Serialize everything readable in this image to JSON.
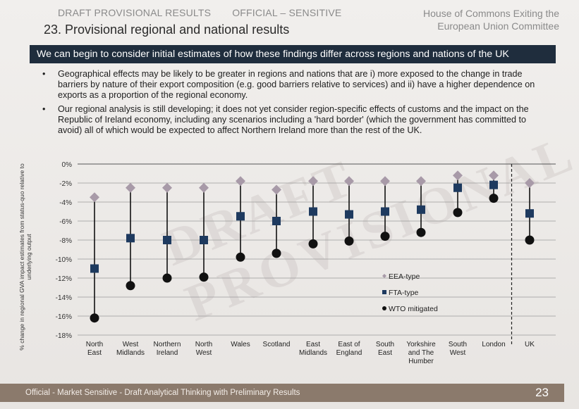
{
  "header": {
    "draft_label": "DRAFT PROVISIONAL RESULTS",
    "classification": "OFFICIAL – SENSITIVE",
    "committee": "House of Commons Exiting the European Union Committee",
    "title": "23. Provisional regional and national results"
  },
  "banner": "We can begin to consider initial estimates of how these findings differ across regions and nations of the UK",
  "bullets": [
    "Geographical effects may be likely to be greater in regions and nations that are i) more exposed to the change in trade barriers by nature of their export composition (e.g. good barriers relative to services) and ii) have a higher dependence on exports as a proportion of the regional economy.",
    "Our regional analysis is still developing; it does not yet consider region-specific effects of customs and the impact on the Republic of Ireland economy, including any scenarios including a 'hard border' (which the government has committed to avoid) all of which would be expected to affect Northern Ireland more than the rest of the UK."
  ],
  "watermark": "DRAFT PROVISIONAL",
  "footer": {
    "text": "Official - Market Sensitive - Draft Analytical Thinking with Preliminary Results",
    "page_number": "23"
  },
  "chart_data": {
    "type": "scatter",
    "ylabel": "% change in regional GVA impact estimates from status-quo relative to underlying output",
    "ylim": [
      -18,
      0
    ],
    "yticks": [
      "0%",
      "-2%",
      "-4%",
      "-6%",
      "-8%",
      "-10%",
      "-12%",
      "-14%",
      "-16%",
      "-18%"
    ],
    "categories": [
      "North East",
      "West Midlands",
      "Northern Ireland",
      "North West",
      "Wales",
      "Scotland",
      "East Midlands",
      "East of England",
      "South East",
      "Yorkshire and The Humber",
      "South West",
      "London",
      "UK"
    ],
    "category_labels": [
      [
        "North",
        "East"
      ],
      [
        "West",
        "Midlands"
      ],
      [
        "Northern",
        "Ireland"
      ],
      [
        "North",
        "West"
      ],
      [
        "Wales"
      ],
      [
        "Scotland"
      ],
      [
        "East",
        "Midlands"
      ],
      [
        "East of",
        "England"
      ],
      [
        "South",
        "East"
      ],
      [
        "Yorkshire",
        "and The",
        "Humber"
      ],
      [
        "South",
        "West"
      ],
      [
        "London"
      ],
      [
        "UK"
      ]
    ],
    "series": [
      {
        "name": "EEA-type",
        "marker": "diamond",
        "color": "#a89aa8",
        "values": [
          -3.5,
          -2.5,
          -2.5,
          -2.5,
          -1.8,
          -2.7,
          -1.8,
          -1.8,
          -1.8,
          -1.8,
          -1.2,
          -1.2,
          -2.0
        ]
      },
      {
        "name": "FTA-type",
        "marker": "square",
        "color": "#1e3a5f",
        "values": [
          -11.0,
          -7.8,
          -8.0,
          -8.0,
          -5.5,
          -6.0,
          -5.0,
          -5.3,
          -5.0,
          -4.8,
          -2.5,
          -2.2,
          -5.2
        ]
      },
      {
        "name": "WTO mitigated",
        "marker": "circle",
        "color": "#111111",
        "values": [
          -16.2,
          -12.8,
          -12.0,
          -11.9,
          -9.8,
          -9.4,
          -8.4,
          -8.1,
          -7.6,
          -7.2,
          -5.1,
          -3.6,
          -8.0
        ]
      }
    ],
    "legend": [
      "EEA-type",
      "FTA-type",
      "WTO mitigated"
    ],
    "legend_position": "bottom-right",
    "separator_before": "UK",
    "grid": true
  }
}
